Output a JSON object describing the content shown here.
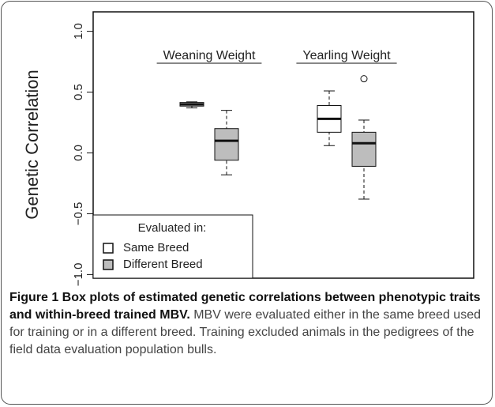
{
  "chart_data": {
    "type": "box",
    "ylabel": "Genetic Correlation",
    "categories": [
      "Weaning Weight",
      "Yearling Weight"
    ],
    "series": [
      {
        "name": "Same Breed",
        "color": "#ffffff",
        "boxes": [
          {
            "min": 0.37,
            "q1": 0.385,
            "median": 0.4,
            "q3": 0.415,
            "max": 0.42
          },
          {
            "min": 0.06,
            "q1": 0.17,
            "median": 0.28,
            "q3": 0.39,
            "max": 0.51
          }
        ]
      },
      {
        "name": "Different Breed",
        "color": "#bdbdbd",
        "boxes": [
          {
            "min": -0.18,
            "q1": -0.06,
            "median": 0.1,
            "q3": 0.2,
            "max": 0.35
          },
          {
            "min": -0.38,
            "q1": -0.11,
            "median": 0.08,
            "q3": 0.17,
            "max": 0.27,
            "outliers": [
              0.61
            ]
          }
        ]
      }
    ],
    "legend_title": "Evaluated in:",
    "legend": "lower left",
    "ylim": [
      -1.03,
      1.16
    ],
    "yticks": [
      {
        "value": -1,
        "label": "−1.0"
      },
      {
        "value": -0.5,
        "label": "−0.5"
      },
      {
        "value": 0,
        "label": "0.0"
      },
      {
        "value": 0.5,
        "label": "0.5"
      },
      {
        "value": 1,
        "label": "1.0"
      }
    ]
  },
  "caption": {
    "bold": "Figure 1 Box plots of estimated genetic correlations between phenotypic traits and within-breed trained MBV.",
    "text": "MBV were evaluated either in the same breed used for training or in a different breed. Training excluded animals in the pedigrees of the field data evaluation population bulls."
  }
}
